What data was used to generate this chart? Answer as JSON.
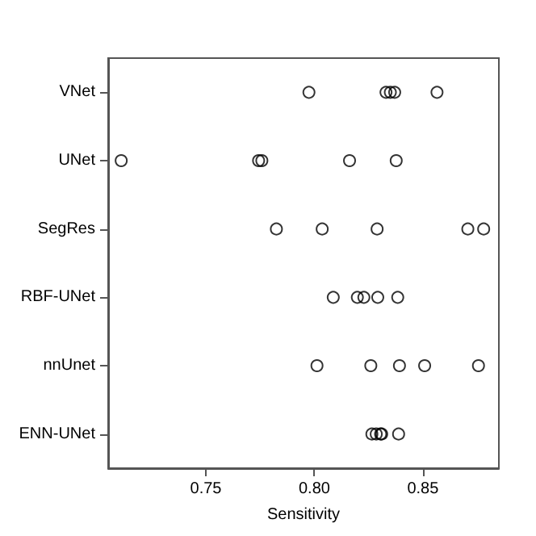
{
  "chart_data": {
    "type": "scatter",
    "orientation": "horizontal",
    "xlabel": "Sensitivity",
    "categories": [
      "VNet",
      "UNet",
      "SegRes",
      "RBF-UNet",
      "nnUnet",
      "ENN-UNet"
    ],
    "xlim": [
      0.705,
      0.885
    ],
    "xticks": [
      {
        "value": 0.75,
        "label": "0.75"
      },
      {
        "value": 0.8,
        "label": "0.80"
      },
      {
        "value": 0.85,
        "label": "0.85"
      }
    ],
    "grid": false,
    "marker": "circle",
    "series": [
      {
        "color": "#000000",
        "x": [
          "VNet",
          "VNet",
          "VNet",
          "VNet",
          "VNet",
          "UNet",
          "UNet",
          "UNet",
          "UNet",
          "UNet",
          "SegRes",
          "SegRes",
          "SegRes",
          "SegRes",
          "SegRes",
          "RBF-UNet",
          "RBF-UNet",
          "RBF-UNet",
          "RBF-UNet",
          "RBF-UNet",
          "nnUnet",
          "nnUnet",
          "nnUnet",
          "nnUnet",
          "nnUnet",
          "ENN-UNet",
          "ENN-UNet",
          "ENN-UNet",
          "ENN-UNet",
          "ENN-UNet"
        ],
        "values": [
          0.7975,
          0.833,
          0.835,
          0.837,
          0.8565,
          0.711,
          0.7743,
          0.7758,
          0.8162,
          0.8377,
          0.7825,
          0.8036,
          0.8289,
          0.8707,
          0.878,
          0.8087,
          0.8198,
          0.8228,
          0.8292,
          0.8384,
          0.8012,
          0.826,
          0.8392,
          0.8508,
          0.8756,
          0.8265,
          0.8285,
          0.8305,
          0.831,
          0.8388
        ]
      }
    ]
  }
}
